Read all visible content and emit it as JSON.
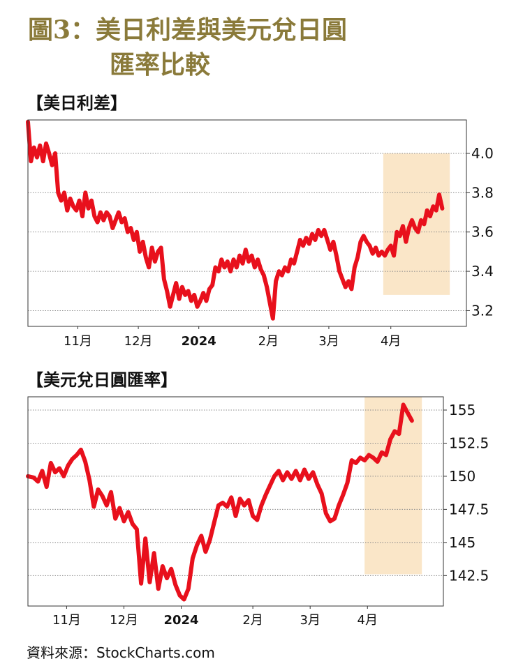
{
  "header": {
    "title_line1": "圖3：美日利差與美元兌日圓",
    "title_line2": "匯率比較"
  },
  "source": "資料來源：StockCharts.com",
  "colors": {
    "line": "#e8101c",
    "highlight": "#fae6c8",
    "title": "#8a7a3a",
    "grid": "#888888"
  },
  "chart_data": [
    {
      "type": "line",
      "title": "【美日利差】",
      "x_labels": [
        "11月",
        "12月",
        "2024",
        "2月",
        "3月",
        "4月"
      ],
      "x_labels_bold": [
        false,
        false,
        true,
        false,
        false,
        false
      ],
      "y_ticks": [
        "4.0",
        "3.8",
        "3.6",
        "3.4",
        "3.2"
      ],
      "y_tick_values": [
        4.0,
        3.8,
        3.6,
        3.4,
        3.2
      ],
      "ylim": [
        3.12,
        4.17
      ],
      "xlim": [
        0,
        29
      ],
      "x_label_positions": [
        3.3,
        7.3,
        11.3,
        15.9,
        19.9,
        24.0
      ],
      "highlight": {
        "x0": 23.5,
        "x1": 27.9,
        "y0": 3.28,
        "y1": 4.0
      },
      "series": [
        {
          "values": [
            [
              0.0,
              4.16
            ],
            [
              0.2,
              3.96
            ],
            [
              0.4,
              4.03
            ],
            [
              0.6,
              3.98
            ],
            [
              0.8,
              4.04
            ],
            [
              1.0,
              3.96
            ],
            [
              1.2,
              4.05
            ],
            [
              1.4,
              4.0
            ],
            [
              1.6,
              3.94
            ],
            [
              1.8,
              4.0
            ],
            [
              2.0,
              3.8
            ],
            [
              2.2,
              3.76
            ],
            [
              2.4,
              3.8
            ],
            [
              2.6,
              3.71
            ],
            [
              2.8,
              3.77
            ],
            [
              3.0,
              3.73
            ],
            [
              3.2,
              3.71
            ],
            [
              3.4,
              3.76
            ],
            [
              3.6,
              3.68
            ],
            [
              3.8,
              3.8
            ],
            [
              4.0,
              3.72
            ],
            [
              4.2,
              3.76
            ],
            [
              4.4,
              3.68
            ],
            [
              4.6,
              3.65
            ],
            [
              4.8,
              3.7
            ],
            [
              5.0,
              3.66
            ],
            [
              5.2,
              3.7
            ],
            [
              5.4,
              3.68
            ],
            [
              5.6,
              3.62
            ],
            [
              5.8,
              3.66
            ],
            [
              6.0,
              3.7
            ],
            [
              6.2,
              3.65
            ],
            [
              6.4,
              3.67
            ],
            [
              6.6,
              3.6
            ],
            [
              6.8,
              3.62
            ],
            [
              7.0,
              3.56
            ],
            [
              7.2,
              3.6
            ],
            [
              7.4,
              3.5
            ],
            [
              7.6,
              3.55
            ],
            [
              7.8,
              3.47
            ],
            [
              8.0,
              3.42
            ],
            [
              8.2,
              3.52
            ],
            [
              8.4,
              3.45
            ],
            [
              8.6,
              3.5
            ],
            [
              8.8,
              3.52
            ],
            [
              9.0,
              3.36
            ],
            [
              9.2,
              3.3
            ],
            [
              9.4,
              3.22
            ],
            [
              9.6,
              3.28
            ],
            [
              9.8,
              3.34
            ],
            [
              10.0,
              3.26
            ],
            [
              10.2,
              3.32
            ],
            [
              10.4,
              3.28
            ],
            [
              10.6,
              3.3
            ],
            [
              10.8,
              3.25
            ],
            [
              11.0,
              3.28
            ],
            [
              11.2,
              3.22
            ],
            [
              11.4,
              3.25
            ],
            [
              11.6,
              3.29
            ],
            [
              11.8,
              3.25
            ],
            [
              12.0,
              3.31
            ],
            [
              12.2,
              3.33
            ],
            [
              12.4,
              3.42
            ],
            [
              12.6,
              3.4
            ],
            [
              12.8,
              3.46
            ],
            [
              13.0,
              3.42
            ],
            [
              13.2,
              3.45
            ],
            [
              13.4,
              3.4
            ],
            [
              13.6,
              3.46
            ],
            [
              13.8,
              3.42
            ],
            [
              14.0,
              3.48
            ],
            [
              14.2,
              3.44
            ],
            [
              14.4,
              3.51
            ],
            [
              14.6,
              3.45
            ],
            [
              14.8,
              3.48
            ],
            [
              15.0,
              3.42
            ],
            [
              15.2,
              3.46
            ],
            [
              15.4,
              3.41
            ],
            [
              15.6,
              3.38
            ],
            [
              15.8,
              3.32
            ],
            [
              16.0,
              3.24
            ],
            [
              16.2,
              3.16
            ],
            [
              16.4,
              3.35
            ],
            [
              16.6,
              3.4
            ],
            [
              16.8,
              3.38
            ],
            [
              17.0,
              3.42
            ],
            [
              17.2,
              3.4
            ],
            [
              17.4,
              3.46
            ],
            [
              17.6,
              3.44
            ],
            [
              17.8,
              3.5
            ],
            [
              18.0,
              3.56
            ],
            [
              18.2,
              3.53
            ],
            [
              18.4,
              3.57
            ],
            [
              18.6,
              3.54
            ],
            [
              18.8,
              3.59
            ],
            [
              19.0,
              3.56
            ],
            [
              19.2,
              3.61
            ],
            [
              19.4,
              3.58
            ],
            [
              19.6,
              3.61
            ],
            [
              19.8,
              3.56
            ],
            [
              20.0,
              3.51
            ],
            [
              20.2,
              3.55
            ],
            [
              20.4,
              3.48
            ],
            [
              20.6,
              3.4
            ],
            [
              20.8,
              3.36
            ],
            [
              21.0,
              3.32
            ],
            [
              21.2,
              3.35
            ],
            [
              21.4,
              3.31
            ],
            [
              21.6,
              3.42
            ],
            [
              21.8,
              3.47
            ],
            [
              22.0,
              3.55
            ],
            [
              22.2,
              3.58
            ],
            [
              22.4,
              3.55
            ],
            [
              22.6,
              3.53
            ],
            [
              22.8,
              3.49
            ],
            [
              23.0,
              3.52
            ],
            [
              23.2,
              3.48
            ],
            [
              23.4,
              3.5
            ],
            [
              23.6,
              3.48
            ],
            [
              23.8,
              3.51
            ],
            [
              24.0,
              3.53
            ],
            [
              24.2,
              3.48
            ],
            [
              24.4,
              3.6
            ],
            [
              24.6,
              3.58
            ],
            [
              24.8,
              3.63
            ],
            [
              25.0,
              3.55
            ],
            [
              25.2,
              3.62
            ],
            [
              25.4,
              3.66
            ],
            [
              25.6,
              3.62
            ],
            [
              25.8,
              3.6
            ],
            [
              26.0,
              3.66
            ],
            [
              26.2,
              3.64
            ],
            [
              26.4,
              3.71
            ],
            [
              26.6,
              3.68
            ],
            [
              26.8,
              3.73
            ],
            [
              27.0,
              3.71
            ],
            [
              27.2,
              3.79
            ],
            [
              27.4,
              3.72
            ]
          ]
        }
      ]
    },
    {
      "type": "line",
      "title": "【美元兌日圓匯率】",
      "x_labels": [
        "11月",
        "12月",
        "2024",
        "2月",
        "3月",
        "4月"
      ],
      "x_labels_bold": [
        false,
        false,
        true,
        false,
        false,
        false
      ],
      "y_ticks": [
        "155",
        "152.5",
        "150",
        "147.5",
        "145",
        "142.5"
      ],
      "y_tick_values": [
        155,
        152.5,
        150,
        147.5,
        145,
        142.5
      ],
      "ylim": [
        140.2,
        156.0
      ],
      "xlim": [
        0,
        29
      ],
      "x_label_positions": [
        2.7,
        6.7,
        10.7,
        15.7,
        19.7,
        23.7
      ],
      "highlight": {
        "x0": 23.5,
        "x1": 27.5,
        "y0": 142.6,
        "y1": 156.0
      },
      "series": [
        {
          "values": [
            [
              0.0,
              150.0
            ],
            [
              0.4,
              149.9
            ],
            [
              0.7,
              149.6
            ],
            [
              1.0,
              150.4
            ],
            [
              1.3,
              149.2
            ],
            [
              1.6,
              151.0
            ],
            [
              1.9,
              150.3
            ],
            [
              2.2,
              150.6
            ],
            [
              2.5,
              150.0
            ],
            [
              2.8,
              150.8
            ],
            [
              3.1,
              151.3
            ],
            [
              3.4,
              151.6
            ],
            [
              3.7,
              152.0
            ],
            [
              4.0,
              151.1
            ],
            [
              4.3,
              149.7
            ],
            [
              4.6,
              147.7
            ],
            [
              4.9,
              149.0
            ],
            [
              5.2,
              148.5
            ],
            [
              5.5,
              147.8
            ],
            [
              5.8,
              148.8
            ],
            [
              6.1,
              146.8
            ],
            [
              6.4,
              147.6
            ],
            [
              6.7,
              146.6
            ],
            [
              7.0,
              147.3
            ],
            [
              7.3,
              146.4
            ],
            [
              7.6,
              146.0
            ],
            [
              7.9,
              141.9
            ],
            [
              8.2,
              145.3
            ],
            [
              8.5,
              142.0
            ],
            [
              8.8,
              144.2
            ],
            [
              9.1,
              141.5
            ],
            [
              9.4,
              143.2
            ],
            [
              9.7,
              142.3
            ],
            [
              10.0,
              143.0
            ],
            [
              10.3,
              141.8
            ],
            [
              10.6,
              141.0
            ],
            [
              10.9,
              140.7
            ],
            [
              11.2,
              141.5
            ],
            [
              11.5,
              143.8
            ],
            [
              11.8,
              144.8
            ],
            [
              12.1,
              145.5
            ],
            [
              12.4,
              144.3
            ],
            [
              12.7,
              145.2
            ],
            [
              13.0,
              146.5
            ],
            [
              13.3,
              147.8
            ],
            [
              13.6,
              148.0
            ],
            [
              13.9,
              147.7
            ],
            [
              14.2,
              148.4
            ],
            [
              14.5,
              147.0
            ],
            [
              14.8,
              148.3
            ],
            [
              15.1,
              147.8
            ],
            [
              15.4,
              148.2
            ],
            [
              15.7,
              147.0
            ],
            [
              16.0,
              146.7
            ],
            [
              16.3,
              147.8
            ],
            [
              16.6,
              148.6
            ],
            [
              16.9,
              149.3
            ],
            [
              17.2,
              150.0
            ],
            [
              17.5,
              150.4
            ],
            [
              17.8,
              149.7
            ],
            [
              18.1,
              150.3
            ],
            [
              18.4,
              149.8
            ],
            [
              18.7,
              150.4
            ],
            [
              19.0,
              149.7
            ],
            [
              19.3,
              150.5
            ],
            [
              19.6,
              149.8
            ],
            [
              19.9,
              150.3
            ],
            [
              20.2,
              149.4
            ],
            [
              20.5,
              148.7
            ],
            [
              20.8,
              147.2
            ],
            [
              21.1,
              146.6
            ],
            [
              21.4,
              146.8
            ],
            [
              21.7,
              147.8
            ],
            [
              22.0,
              148.6
            ],
            [
              22.3,
              149.5
            ],
            [
              22.6,
              151.2
            ],
            [
              22.9,
              151.0
            ],
            [
              23.2,
              151.4
            ],
            [
              23.5,
              151.2
            ],
            [
              23.8,
              151.6
            ],
            [
              24.1,
              151.4
            ],
            [
              24.4,
              151.1
            ],
            [
              24.7,
              151.8
            ],
            [
              25.0,
              151.6
            ],
            [
              25.3,
              152.8
            ],
            [
              25.6,
              153.4
            ],
            [
              25.9,
              153.2
            ],
            [
              26.2,
              155.4
            ],
            [
              26.5,
              154.8
            ],
            [
              26.8,
              154.2
            ]
          ]
        }
      ]
    }
  ]
}
